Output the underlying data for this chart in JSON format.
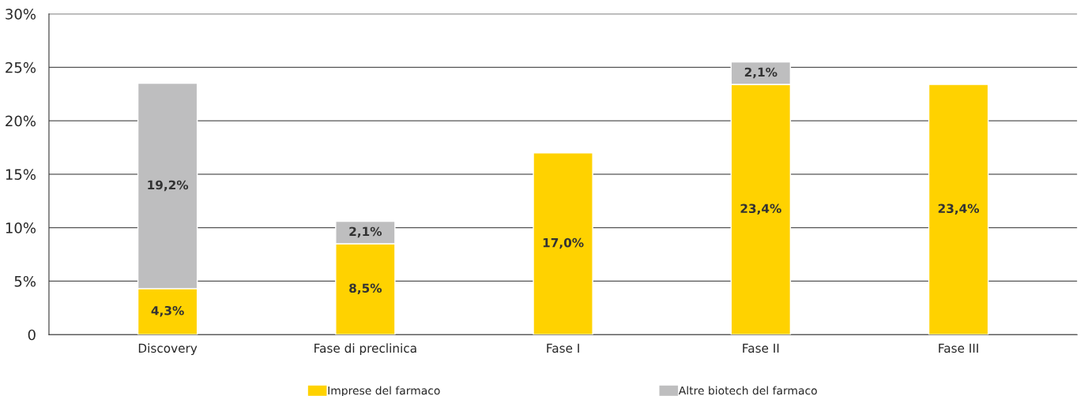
{
  "chart_data": {
    "type": "bar",
    "stacked": true,
    "categories": [
      "Discovery",
      "Fase di preclinica",
      "Fase I",
      "Fase II",
      "Fase III"
    ],
    "series": [
      {
        "name": "Imprese del farmaco",
        "color": "#ffd200",
        "values": [
          4.3,
          8.5,
          17.0,
          23.4,
          23.4
        ],
        "value_labels": [
          "4,3%",
          "8,5%",
          "17,0%",
          "23,4%",
          "23,4%"
        ]
      },
      {
        "name": "Altre biotech del farmaco",
        "color": "#bebebf",
        "values": [
          19.2,
          2.1,
          null,
          2.1,
          null
        ],
        "value_labels": [
          "19,2%",
          "2,1%",
          null,
          "2,1%",
          null
        ]
      }
    ],
    "ylim": [
      0,
      30
    ],
    "yticks": [
      {
        "value": 0,
        "label": "0"
      },
      {
        "value": 5,
        "label": "5%"
      },
      {
        "value": 10,
        "label": "10%"
      },
      {
        "value": 15,
        "label": "15%"
      },
      {
        "value": 20,
        "label": "20%"
      },
      {
        "value": 25,
        "label": "25%"
      },
      {
        "value": 30,
        "label": "30%"
      }
    ],
    "grid": "y",
    "legend": "bottom"
  }
}
